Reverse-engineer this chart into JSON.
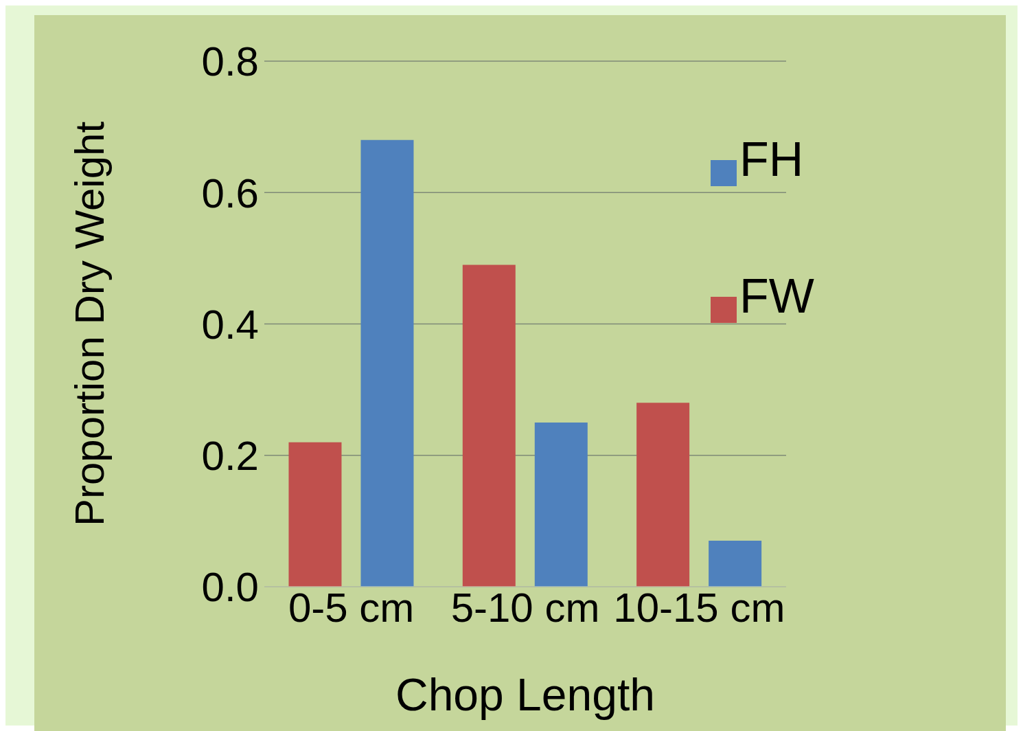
{
  "chart_data": {
    "type": "bar",
    "xlabel": "Chop Length",
    "ylabel": "Proportion Dry Weight",
    "categories": [
      "0-5 cm",
      "5-10 cm",
      "10-15 cm"
    ],
    "series": [
      {
        "name": "FW",
        "color": "#c0504d",
        "values": [
          0.22,
          0.49,
          0.28
        ]
      },
      {
        "name": "FH",
        "color": "#4f81bd",
        "values": [
          0.68,
          0.25,
          0.07
        ]
      }
    ],
    "ylim": [
      0,
      0.8
    ],
    "yticks": [
      {
        "value": 0,
        "label": "0.0"
      },
      {
        "value": 0.2,
        "label": "0.2"
      },
      {
        "value": 0.4,
        "label": "0.4"
      },
      {
        "value": 0.6,
        "label": "0.6"
      },
      {
        "value": 0.8,
        "label": "0.8"
      }
    ],
    "grid": "y",
    "legend": "top right"
  }
}
